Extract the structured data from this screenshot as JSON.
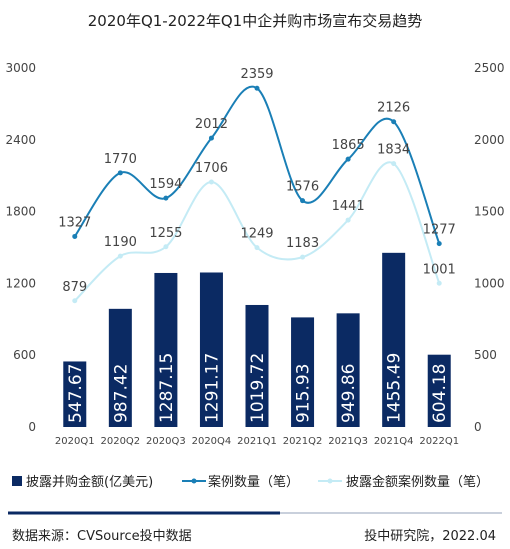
{
  "chart_data": {
    "type": "bar",
    "title": "2020年Q1-2022年Q1中企并购市场宣布交易趋势",
    "categories": [
      "2020Q1",
      "2020Q2",
      "2020Q3",
      "2020Q4",
      "2021Q1",
      "2021Q2",
      "2021Q3",
      "2021Q4",
      "2022Q1"
    ],
    "left_axis": {
      "ticks": [
        "3000",
        "2400",
        "1800",
        "1200",
        "600",
        "0"
      ],
      "range": [
        0,
        3000
      ]
    },
    "right_axis": {
      "ticks": [
        "2500",
        "2000",
        "1500",
        "1000",
        "500",
        "0"
      ],
      "range": [
        0,
        2500
      ]
    },
    "series": [
      {
        "name": "披露并购金额(亿美元)",
        "kind": "bar",
        "axis": "left",
        "color": "#0b2a63",
        "values": [
          547.67,
          987.42,
          1287.15,
          1291.17,
          1019.72,
          915.93,
          949.86,
          1455.49,
          604.18
        ],
        "labels": [
          "547.67",
          "987.42",
          "1287.15",
          "1291.17",
          "1019.72",
          "915.93",
          "949.86",
          "1455.49",
          "604.18"
        ]
      },
      {
        "name": "案例数量（笔）",
        "kind": "line",
        "axis": "right",
        "color": "#1a7fb6",
        "values": [
          1327,
          1770,
          1594,
          2012,
          2359,
          1576,
          1865,
          2126,
          1277
        ],
        "labels": [
          "1327",
          "1770",
          "1594",
          "2012",
          "2359",
          "1576",
          "1865",
          "2126",
          "1277"
        ]
      },
      {
        "name": "披露金额案例数量（笔）",
        "kind": "line",
        "axis": "right",
        "color": "#c4ebf5",
        "values": [
          879,
          1190,
          1255,
          1706,
          1249,
          1183,
          1441,
          1834,
          1001
        ],
        "labels": [
          "879",
          "1190",
          "1255",
          "1706",
          "1249",
          "1183",
          "1441",
          "1834",
          "1001"
        ]
      }
    ]
  },
  "footer": {
    "source": "数据来源：CVSource投中数据",
    "credit": "投中研究院，2022.04"
  }
}
